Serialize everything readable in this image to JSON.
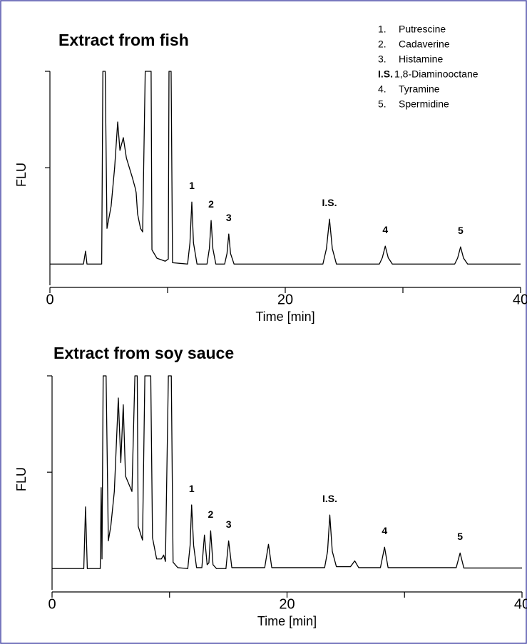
{
  "chart_data": [
    {
      "type": "line",
      "title": "Extract from fish",
      "xlabel": "Time [min]",
      "ylabel": "FLU",
      "color": "#000000",
      "xlim": [
        0,
        40
      ],
      "ylim": [
        -11,
        100
      ],
      "xticks": [
        0,
        20,
        40
      ],
      "minor_xticks": [
        10,
        30
      ],
      "yticks": [
        50,
        100
      ],
      "x": [
        0,
        2.85,
        3.03,
        3.15,
        4.4,
        4.5,
        4.7,
        4.85,
        5.2,
        5.5,
        5.76,
        5.95,
        6.24,
        6.5,
        7.0,
        7.27,
        7.33,
        7.45,
        7.7,
        7.88,
        8.1,
        8.6,
        8.67,
        9.1,
        9.8,
        10.06,
        10.12,
        10.3,
        10.42,
        11.7,
        11.9,
        12.06,
        12.2,
        12.5,
        13.35,
        13.55,
        13.7,
        13.85,
        14.1,
        14.85,
        15.05,
        15.2,
        15.35,
        15.65,
        23.2,
        23.5,
        23.76,
        24.0,
        24.35,
        28.0,
        28.25,
        28.5,
        28.75,
        29.1,
        34.4,
        34.65,
        34.9,
        35.15,
        35.5,
        40
      ],
      "values": [
        0,
        0,
        6.7,
        0,
        0,
        100,
        100,
        18.5,
        30,
        50,
        73.7,
        59,
        65.6,
        55,
        45,
        39,
        37,
        26,
        18.5,
        16.7,
        100,
        100,
        7.4,
        3,
        1.5,
        2.6,
        100,
        100,
        0.7,
        0,
        11,
        32.2,
        11,
        0,
        0,
        8,
        22.6,
        8,
        0,
        0,
        5.5,
        15.6,
        5.5,
        0,
        0,
        8,
        23.3,
        8,
        0,
        0,
        3.3,
        9.3,
        3.3,
        0,
        0,
        3.1,
        8.9,
        3.1,
        0,
        0
      ],
      "annotations": [
        {
          "text": "1",
          "x": 12.06
        },
        {
          "text": "2",
          "x": 13.7
        },
        {
          "text": "3",
          "x": 15.2
        },
        {
          "text": "I.S.",
          "x": 23.76
        },
        {
          "text": "4",
          "x": 28.5
        },
        {
          "text": "5",
          "x": 34.9
        }
      ],
      "legend": [
        {
          "number": "1.",
          "name": "Putrescine"
        },
        {
          "number": "2.",
          "name": "Cadaverine"
        },
        {
          "number": "3.",
          "name": "Histamine"
        },
        {
          "number": "I.S.",
          "name": "1,8-Diaminooctane"
        },
        {
          "number": "4.",
          "name": "Tyramine"
        },
        {
          "number": "5.",
          "name": "Spermidine"
        }
      ]
    },
    {
      "type": "line",
      "title": "Extract from soy sauce",
      "xlabel": "Time [min]",
      "ylabel": "FLU",
      "color": "#000000",
      "xlim": [
        0,
        40
      ],
      "ylim": [
        -11,
        100
      ],
      "xticks": [
        0,
        20,
        40
      ],
      "minor_xticks": [
        10,
        30
      ],
      "yticks": [
        50,
        100
      ],
      "x": [
        0,
        2.7,
        2.85,
        3.0,
        4.1,
        4.18,
        4.25,
        4.35,
        4.6,
        4.79,
        5.0,
        5.3,
        5.64,
        5.85,
        6.06,
        6.25,
        6.8,
        7.05,
        7.25,
        7.33,
        7.7,
        7.9,
        8.4,
        8.55,
        8.9,
        9.3,
        9.5,
        9.65,
        9.9,
        10.15,
        10.3,
        10.7,
        11.55,
        11.75,
        11.88,
        12.05,
        12.3,
        12.75,
        12.97,
        13.2,
        13.35,
        13.5,
        13.7,
        14.0,
        14.8,
        15.03,
        15.3,
        18.1,
        18.42,
        18.7,
        23.2,
        23.45,
        23.64,
        23.85,
        24.2,
        25.4,
        25.76,
        26.1,
        27.95,
        28.3,
        28.6,
        34.4,
        34.73,
        35.05,
        40
      ],
      "values": [
        0,
        0,
        32,
        0,
        0,
        42,
        5,
        100,
        100,
        14.4,
        22,
        40,
        88.5,
        55,
        85,
        48,
        40,
        100,
        100,
        22,
        14.8,
        100,
        100,
        16,
        5,
        5,
        7,
        3.7,
        100,
        100,
        3.3,
        0.5,
        0,
        12,
        33,
        12,
        0.5,
        0.5,
        17.4,
        2,
        3,
        19.6,
        2,
        0,
        0,
        14.4,
        0.5,
        0.5,
        12.6,
        0.5,
        0.5,
        9,
        27.8,
        9,
        1,
        1,
        4,
        0.5,
        0.5,
        11.1,
        0.5,
        0.5,
        8.1,
        0.3,
        0.3
      ],
      "annotations": [
        {
          "text": "1",
          "x": 11.88
        },
        {
          "text": "2",
          "x": 13.5
        },
        {
          "text": "3",
          "x": 15.03
        },
        {
          "text": "I.S.",
          "x": 23.64
        },
        {
          "text": "4",
          "x": 28.3
        },
        {
          "text": "5",
          "x": 34.73
        }
      ]
    }
  ]
}
